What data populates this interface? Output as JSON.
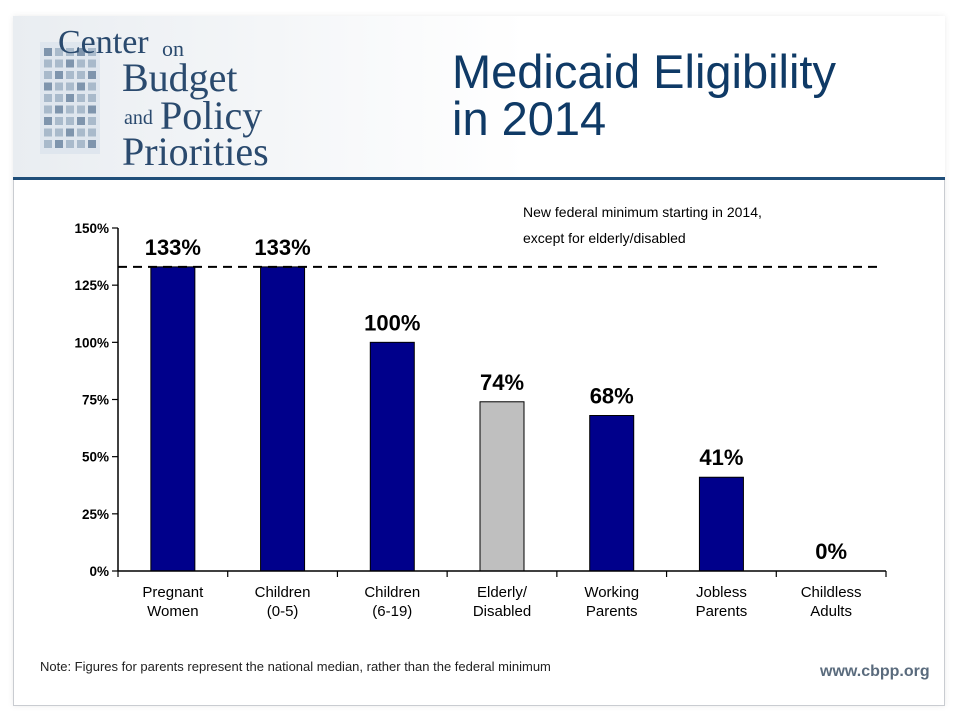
{
  "slide": {
    "title_line1": "Medicaid Eligibility",
    "title_line2": "in 2014",
    "note": "Note: Figures for parents represent the national median, rather than the federal minimum",
    "footer_url": "www.cbpp.org"
  },
  "logo": {
    "line1": "Center",
    "line1b": "on",
    "line2": "Budget",
    "line3a": "and",
    "line3": "Policy",
    "line4": "Priorities"
  },
  "colors": {
    "bar_primary": "#00008b",
    "bar_highlight": "#bfbfbf",
    "title": "#0f3a66",
    "rule": "#1f4e79"
  },
  "chart_data": {
    "type": "bar",
    "categories": [
      [
        "Pregnant",
        "Women"
      ],
      [
        "Children",
        "(0-5)"
      ],
      [
        "Children",
        "(6-19)"
      ],
      [
        "Elderly/",
        "Disabled"
      ],
      [
        "Working",
        "Parents"
      ],
      [
        "Jobless",
        "Parents"
      ],
      [
        "Childless",
        "Adults"
      ]
    ],
    "values": [
      133,
      133,
      100,
      74,
      68,
      41,
      0
    ],
    "value_labels": [
      "133%",
      "133%",
      "100%",
      "74%",
      "68%",
      "41%",
      "0%"
    ],
    "highlight_index": 3,
    "ylim": [
      0,
      150
    ],
    "yticks": [
      0,
      25,
      50,
      75,
      100,
      125,
      150
    ],
    "ytick_labels": [
      "0%",
      "25%",
      "50%",
      "75%",
      "100%",
      "125%",
      "150%"
    ],
    "reference_line": {
      "value": 133,
      "label_line1": "New federal minimum starting in 2014,",
      "label_line2": "except for elderly/disabled"
    },
    "grid": false,
    "legend": "none"
  }
}
